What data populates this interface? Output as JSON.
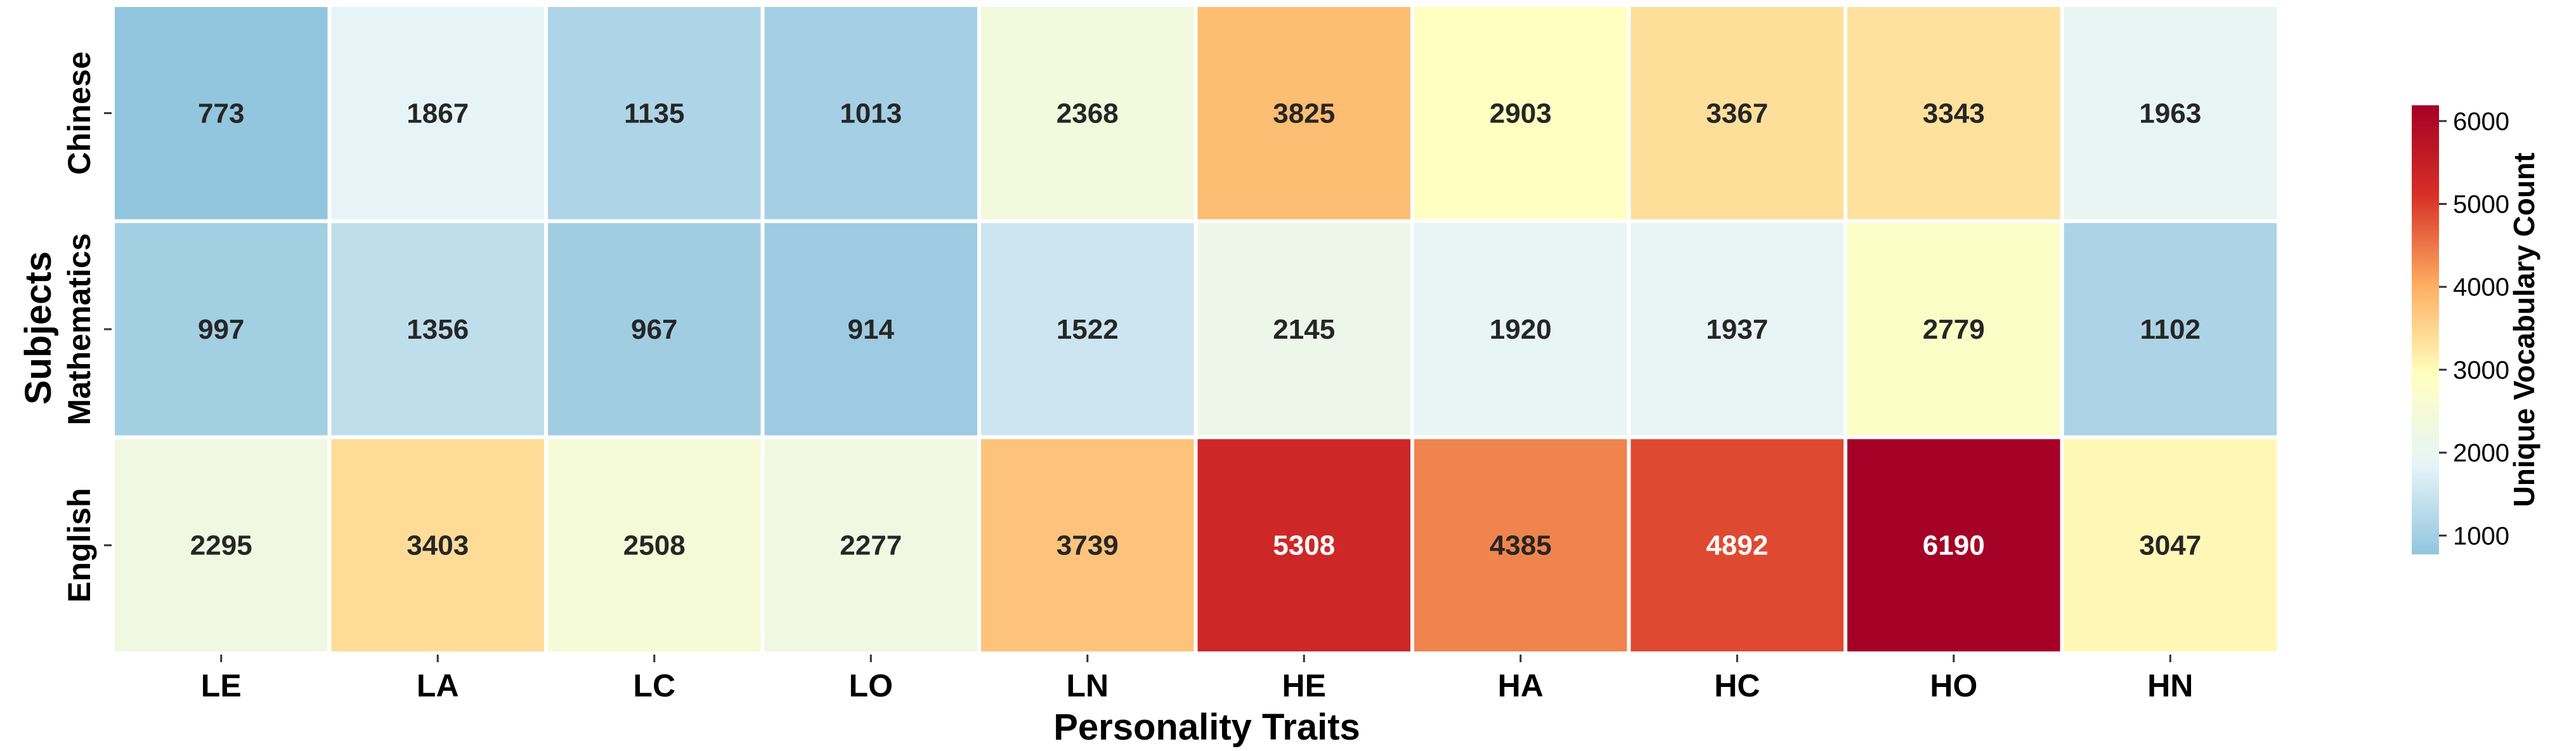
{
  "chart_data": {
    "type": "heatmap",
    "title": "",
    "xlabel": "Personality Traits",
    "ylabel": "Subjects",
    "x_categories": [
      "LE",
      "LA",
      "LC",
      "LO",
      "LN",
      "HE",
      "HA",
      "HC",
      "HO",
      "HN"
    ],
    "y_categories": [
      "Chinese",
      "Mathematics",
      "English"
    ],
    "values": [
      [
        773,
        1867,
        1135,
        1013,
        2368,
        3825,
        2903,
        3367,
        3343,
        1963
      ],
      [
        997,
        1356,
        967,
        914,
        1522,
        2145,
        1920,
        1937,
        2779,
        1102
      ],
      [
        2295,
        3403,
        2508,
        2277,
        3739,
        5308,
        4385,
        4892,
        6190,
        3047
      ]
    ],
    "annotations": "values shown in each cell",
    "colormap": "RdYlBu_r",
    "colorbar": {
      "label": "Unique Vocabulary Count",
      "range": [
        773,
        6190
      ],
      "ticks": [
        1000,
        2000,
        3000,
        4000,
        5000,
        6000
      ],
      "tick_labels": [
        "1000",
        "2000",
        "3000",
        "4000",
        "5000",
        "6000"
      ],
      "position": "right"
    },
    "colors": {
      "stops": [
        "#92c5de",
        "#e6f4f8",
        "#ffffbf",
        "#fdae61",
        "#d73027",
        "#a50026"
      ],
      "cell_border": "#ffffff",
      "text_dark": "#262626",
      "text_light": "#ffffff"
    }
  }
}
